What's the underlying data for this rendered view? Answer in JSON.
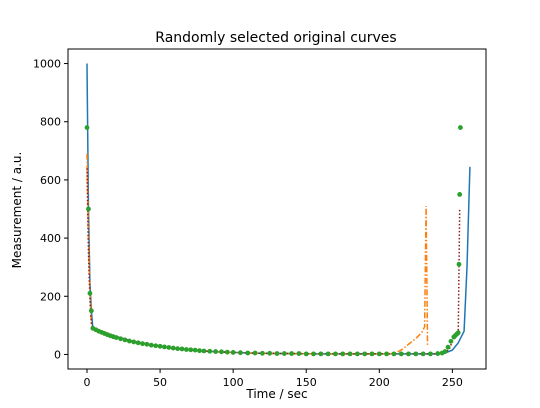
{
  "chart_data": {
    "type": "line",
    "title": "Randomly selected original curves",
    "xlabel": "Time / sec",
    "ylabel": "Measurement / a.u.",
    "xlim": [
      -13,
      273
    ],
    "ylim": [
      -50,
      1050
    ],
    "x_ticks": [
      0,
      50,
      100,
      150,
      200,
      250
    ],
    "y_ticks": [
      0,
      200,
      400,
      600,
      800,
      1000
    ],
    "grid": false,
    "legend": "none",
    "series": [
      {
        "color": "#1f77b4",
        "style": "solid",
        "points": [
          [
            0,
            1000
          ],
          [
            1,
            500
          ],
          [
            2,
            250
          ],
          [
            3,
            150
          ],
          [
            4,
            90
          ],
          [
            10,
            80
          ],
          [
            20,
            62
          ],
          [
            30,
            47
          ],
          [
            40,
            37
          ],
          [
            50,
            28
          ],
          [
            60,
            21
          ],
          [
            70,
            16
          ],
          [
            80,
            12
          ],
          [
            90,
            9
          ],
          [
            100,
            7
          ],
          [
            110,
            5
          ],
          [
            120,
            4
          ],
          [
            140,
            3
          ],
          [
            160,
            2
          ],
          [
            180,
            2
          ],
          [
            200,
            2
          ],
          [
            220,
            2
          ],
          [
            240,
            2
          ],
          [
            245,
            5
          ],
          [
            250,
            15
          ],
          [
            254,
            40
          ],
          [
            258,
            80
          ],
          [
            260,
            300
          ],
          [
            262,
            645
          ]
        ]
      },
      {
        "color": "#ff7f0e",
        "style": "dashdot",
        "points": [
          [
            0,
            690
          ],
          [
            1,
            400
          ],
          [
            2,
            220
          ],
          [
            3,
            100
          ],
          [
            4,
            90
          ],
          [
            10,
            80
          ],
          [
            20,
            62
          ],
          [
            30,
            47
          ],
          [
            40,
            37
          ],
          [
            50,
            28
          ],
          [
            60,
            21
          ],
          [
            70,
            16
          ],
          [
            80,
            12
          ],
          [
            90,
            9
          ],
          [
            100,
            7
          ],
          [
            110,
            5
          ],
          [
            120,
            4
          ],
          [
            140,
            3
          ],
          [
            160,
            2
          ],
          [
            180,
            2
          ],
          [
            200,
            2
          ],
          [
            210,
            3
          ],
          [
            215,
            15
          ],
          [
            220,
            35
          ],
          [
            225,
            55
          ],
          [
            229,
            75
          ],
          [
            231,
            95
          ],
          [
            232,
            510
          ],
          [
            233,
            30
          ]
        ]
      },
      {
        "color": "#8b1a1a",
        "style": "dotted",
        "points": [
          [
            0,
            640
          ],
          [
            1,
            350
          ],
          [
            2,
            190
          ],
          [
            3,
            110
          ],
          [
            4,
            90
          ],
          [
            10,
            80
          ],
          [
            20,
            62
          ],
          [
            30,
            47
          ],
          [
            40,
            37
          ],
          [
            50,
            28
          ],
          [
            60,
            21
          ],
          [
            70,
            16
          ],
          [
            80,
            12
          ],
          [
            90,
            9
          ],
          [
            100,
            7
          ],
          [
            110,
            5
          ],
          [
            120,
            4
          ],
          [
            140,
            3
          ],
          [
            160,
            2
          ],
          [
            180,
            2
          ],
          [
            200,
            2
          ],
          [
            220,
            2
          ],
          [
            240,
            2
          ],
          [
            245,
            5
          ],
          [
            248,
            20
          ],
          [
            250,
            45
          ],
          [
            252,
            60
          ],
          [
            254,
            70
          ],
          [
            255,
            500
          ]
        ]
      },
      {
        "color": "#2ca02c",
        "style": "markers",
        "points": [
          [
            0,
            780
          ],
          [
            1,
            500
          ],
          [
            2,
            210
          ],
          [
            3,
            150
          ],
          [
            4,
            90
          ],
          [
            6,
            85
          ],
          [
            8,
            80
          ],
          [
            10,
            76
          ],
          [
            12,
            72
          ],
          [
            14,
            68
          ],
          [
            16,
            64
          ],
          [
            18,
            61
          ],
          [
            20,
            58
          ],
          [
            23,
            54
          ],
          [
            26,
            50
          ],
          [
            29,
            46
          ],
          [
            32,
            43
          ],
          [
            35,
            40
          ],
          [
            38,
            37
          ],
          [
            41,
            35
          ],
          [
            44,
            32
          ],
          [
            47,
            30
          ],
          [
            50,
            28
          ],
          [
            53,
            26
          ],
          [
            56,
            24
          ],
          [
            59,
            22
          ],
          [
            62,
            20
          ],
          [
            65,
            19
          ],
          [
            68,
            17
          ],
          [
            71,
            16
          ],
          [
            74,
            15
          ],
          [
            77,
            13
          ],
          [
            80,
            12
          ],
          [
            84,
            11
          ],
          [
            88,
            10
          ],
          [
            92,
            9
          ],
          [
            96,
            8
          ],
          [
            100,
            7
          ],
          [
            105,
            6
          ],
          [
            110,
            5
          ],
          [
            115,
            5
          ],
          [
            120,
            4
          ],
          [
            125,
            4
          ],
          [
            130,
            3
          ],
          [
            135,
            3
          ],
          [
            140,
            3
          ],
          [
            145,
            3
          ],
          [
            150,
            2
          ],
          [
            155,
            2
          ],
          [
            160,
            2
          ],
          [
            165,
            2
          ],
          [
            170,
            2
          ],
          [
            175,
            2
          ],
          [
            180,
            2
          ],
          [
            185,
            2
          ],
          [
            190,
            2
          ],
          [
            195,
            2
          ],
          [
            200,
            2
          ],
          [
            205,
            2
          ],
          [
            210,
            2
          ],
          [
            215,
            2
          ],
          [
            220,
            2
          ],
          [
            225,
            2
          ],
          [
            230,
            2
          ],
          [
            235,
            2
          ],
          [
            240,
            3
          ],
          [
            243,
            5
          ],
          [
            245,
            10
          ],
          [
            247,
            25
          ],
          [
            249,
            45
          ],
          [
            251,
            60
          ],
          [
            252,
            65
          ],
          [
            253,
            70
          ],
          [
            254,
            75
          ],
          [
            254.5,
            310
          ],
          [
            255,
            550
          ],
          [
            255.5,
            780
          ]
        ]
      }
    ]
  }
}
